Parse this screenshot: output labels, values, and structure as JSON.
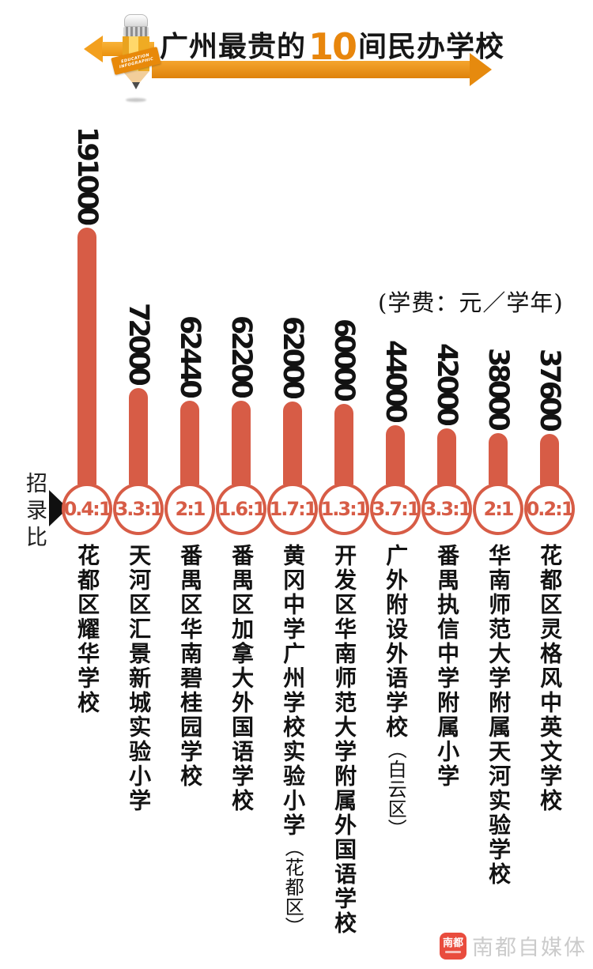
{
  "title": {
    "prefix": "广州最贵的",
    "highlight": "10",
    "suffix": "间民办学校"
  },
  "pencil_ribbon": "EDUCATION INFOGRAPHIC",
  "unit_note": "(学费：元／学年)",
  "ratio_axis_label": "招录比",
  "watermark": {
    "logo": "南都",
    "label": "南都自媒体"
  },
  "colors": {
    "bar_red": "#D75C46",
    "arrow_orange": "#EE8C0B",
    "title_highlight": "#E8860C",
    "watermark_gray": "#CBCBCB",
    "logo_red": "#E94C3D"
  },
  "schools": [
    {
      "name": "花都区耀华学校",
      "note": "",
      "tuition": 191000,
      "ratio": "0.4:1"
    },
    {
      "name": "天河区汇景新城实验小学",
      "note": "",
      "tuition": 72000,
      "ratio": "3.3:1"
    },
    {
      "name": "番禺区华南碧桂园学校",
      "note": "",
      "tuition": 62440,
      "ratio": "2:1"
    },
    {
      "name": "番禺区加拿大外国语学校",
      "note": "",
      "tuition": 62200,
      "ratio": "1.6:1"
    },
    {
      "name": "黄冈中学广州学校实验小学",
      "note": "（花都区）",
      "tuition": 62000,
      "ratio": "1.7:1"
    },
    {
      "name": "开发区华南师范大学附属外国语学校",
      "note": "",
      "tuition": 60000,
      "ratio": "1.3:1"
    },
    {
      "name": "广外附设外语学校",
      "note": "（白云区）",
      "tuition": 44000,
      "ratio": "3.7:1"
    },
    {
      "name": "番禺执信中学附属小学",
      "note": "",
      "tuition": 42000,
      "ratio": "3.3:1"
    },
    {
      "name": "华南师范大学附属天河实验学校",
      "note": "",
      "tuition": 38000,
      "ratio": "2:1"
    },
    {
      "name": "花都区灵格风中英文学校",
      "note": "",
      "tuition": 37600,
      "ratio": "0.2:1"
    }
  ],
  "chart_data": {
    "type": "bar",
    "title": "广州最贵的10间民办学校",
    "subtitle": "(学费：元／学年)",
    "xlabel": "",
    "ylabel": "学费（元／学年）",
    "ratio_label": "招录比",
    "grid": false,
    "legend_position": "none",
    "ylim": [
      0,
      200000
    ],
    "categories": [
      "花都区耀华学校",
      "天河区汇景新城实验小学",
      "番禺区华南碧桂园学校",
      "番禺区加拿大外国语学校",
      "黄冈中学广州学校实验小学（花都区）",
      "开发区华南师范大学附属外国语学校",
      "广外附设外语学校（白云区）",
      "番禺执信中学附属小学",
      "华南师范大学附属天河实验学校",
      "花都区灵格风中英文学校"
    ],
    "values": [
      191000,
      72000,
      62440,
      62200,
      62000,
      60000,
      44000,
      42000,
      38000,
      37600
    ],
    "admission_ratios": [
      "0.4:1",
      "3.3:1",
      "2:1",
      "1.6:1",
      "1.7:1",
      "1.3:1",
      "3.7:1",
      "3.3:1",
      "2:1",
      "0.2:1"
    ]
  }
}
